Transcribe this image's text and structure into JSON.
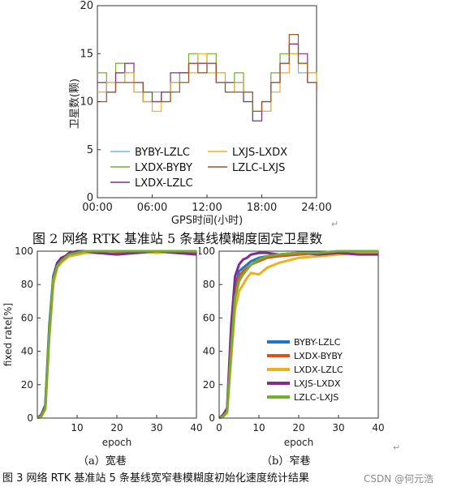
{
  "figure2": {
    "caption": "图 2  网络 RTK 基准站 5 条基线模糊度固定卫星数",
    "return_mark": "↵"
  },
  "figure3": {
    "caption": "图 3  网络 RTK 基准站 5 条基线宽窄巷模糊度初始化速度统计结果",
    "subcaption_a": "（a）宽巷",
    "subcaption_b": "（b）窄巷",
    "return_mark": "↵"
  },
  "watermark": "CSDN @何元浩",
  "colors": {
    "blue": "#1f77c4",
    "orange": "#d95319",
    "yellow": "#edb120",
    "purple": "#7e2f8e",
    "green": "#77ac30",
    "light_blue": "#6fb6e0",
    "brown": "#a0522d"
  },
  "chart_data": [
    {
      "type": "line",
      "ylabel": "卫星数(颗)",
      "xlabel": "GPS时间(小时)",
      "xlim": [
        0,
        24
      ],
      "ylim": [
        0,
        20
      ],
      "xticks": [
        "00:00",
        "06:00",
        "12:00",
        "18:00",
        "24:00"
      ],
      "yticks": [
        "0",
        "5",
        "10",
        "15",
        "20"
      ],
      "grid": false,
      "legend_position": "lower-left",
      "series": [
        {
          "name": "BYBY-LZLC",
          "color": "#6fb6e0",
          "x": [
            0,
            1,
            2,
            3,
            4,
            5,
            6,
            7,
            8,
            9,
            10,
            11,
            12,
            13,
            14,
            15,
            16,
            17,
            18,
            19,
            20,
            21,
            22,
            23,
            24
          ],
          "y": [
            12,
            11,
            13,
            12,
            11,
            10,
            11,
            10,
            12,
            13,
            14,
            13,
            14,
            12,
            11,
            12,
            10,
            8,
            9,
            12,
            14,
            15,
            13,
            12,
            12
          ]
        },
        {
          "name": "LXDX-BYBY",
          "color": "#77ac30",
          "x": [
            0,
            1,
            2,
            3,
            4,
            5,
            6,
            7,
            8,
            9,
            10,
            11,
            12,
            13,
            14,
            15,
            16,
            17,
            18,
            19,
            20,
            21,
            22,
            23,
            24
          ],
          "y": [
            13,
            12,
            14,
            13,
            12,
            11,
            10,
            11,
            12,
            13,
            15,
            14,
            15,
            13,
            12,
            13,
            11,
            9,
            10,
            13,
            15,
            16,
            14,
            13,
            12
          ]
        },
        {
          "name": "LXDX-LZLC",
          "color": "#7e2f8e",
          "x": [
            0,
            1,
            2,
            3,
            4,
            5,
            6,
            7,
            8,
            9,
            10,
            11,
            12,
            13,
            14,
            15,
            16,
            17,
            18,
            19,
            20,
            21,
            22,
            23,
            24
          ],
          "y": [
            12,
            11,
            13,
            14,
            12,
            10,
            10,
            11,
            13,
            13,
            14,
            14,
            14,
            12,
            12,
            12,
            10,
            8,
            10,
            12,
            14,
            16,
            15,
            12,
            11
          ]
        },
        {
          "name": "LXJS-LXDX",
          "color": "#edb120",
          "x": [
            0,
            1,
            2,
            3,
            4,
            5,
            6,
            7,
            8,
            9,
            10,
            11,
            12,
            13,
            14,
            15,
            16,
            17,
            18,
            19,
            20,
            21,
            22,
            23,
            24
          ],
          "y": [
            11,
            12,
            12,
            13,
            11,
            10,
            9,
            10,
            12,
            12,
            13,
            15,
            13,
            13,
            11,
            12,
            11,
            9,
            9,
            11,
            13,
            15,
            14,
            13,
            12
          ]
        },
        {
          "name": "LZLC-LXJS",
          "color": "#a0522d",
          "x": [
            0,
            1,
            2,
            3,
            4,
            5,
            6,
            7,
            8,
            9,
            10,
            11,
            12,
            13,
            14,
            15,
            16,
            17,
            18,
            19,
            20,
            21,
            22,
            23,
            24
          ],
          "y": [
            10,
            11,
            12,
            12,
            12,
            11,
            10,
            10,
            11,
            12,
            14,
            13,
            14,
            12,
            11,
            11,
            11,
            9,
            10,
            12,
            14,
            17,
            14,
            12,
            11
          ]
        }
      ]
    },
    {
      "type": "line",
      "ylabel": "fixed rate[%]",
      "xlabel": "epoch",
      "xlim": [
        0,
        40
      ],
      "ylim": [
        0,
        100
      ],
      "xticks": [
        "10",
        "20",
        "30",
        "40"
      ],
      "yticks": [
        "0",
        "20",
        "40",
        "60",
        "80",
        "100"
      ],
      "grid": false,
      "series": [
        {
          "name": "BYBY-LZLC",
          "color": "#1f77c4",
          "x": [
            0,
            1,
            2,
            3,
            4,
            5,
            6,
            7,
            8,
            10,
            12,
            15,
            20,
            25,
            30,
            35,
            40
          ],
          "y": [
            0,
            2,
            8,
            55,
            85,
            93,
            95,
            96,
            97,
            98,
            99,
            100,
            100,
            99,
            100,
            99,
            99
          ]
        },
        {
          "name": "LXDX-BYBY",
          "color": "#d95319",
          "x": [
            0,
            1,
            2,
            3,
            4,
            5,
            6,
            7,
            8,
            10,
            12,
            15,
            20,
            25,
            30,
            35,
            40
          ],
          "y": [
            0,
            1,
            6,
            50,
            82,
            92,
            94,
            97,
            98,
            99,
            100,
            100,
            99,
            100,
            100,
            99,
            99
          ]
        },
        {
          "name": "LXDX-LZLC",
          "color": "#edb120",
          "x": [
            0,
            1,
            2,
            3,
            4,
            5,
            6,
            7,
            8,
            10,
            12,
            15,
            20,
            25,
            30,
            35,
            40
          ],
          "y": [
            0,
            1,
            5,
            48,
            80,
            90,
            93,
            95,
            97,
            98,
            99,
            99,
            100,
            100,
            99,
            100,
            100
          ]
        },
        {
          "name": "LXJS-LXDX",
          "color": "#7e2f8e",
          "x": [
            0,
            1,
            2,
            3,
            4,
            5,
            6,
            7,
            8,
            10,
            12,
            15,
            20,
            25,
            30,
            35,
            40
          ],
          "y": [
            0,
            2,
            7,
            52,
            84,
            93,
            96,
            97,
            99,
            100,
            100,
            99,
            98,
            99,
            100,
            99,
            98
          ]
        },
        {
          "name": "LZLC-LXJS",
          "color": "#77ac30",
          "x": [
            0,
            1,
            2,
            3,
            4,
            5,
            6,
            7,
            8,
            10,
            12,
            15,
            20,
            25,
            30,
            35,
            40
          ],
          "y": [
            0,
            1,
            6,
            50,
            83,
            91,
            94,
            96,
            98,
            99,
            100,
            100,
            100,
            100,
            100,
            100,
            100
          ]
        }
      ]
    },
    {
      "type": "line",
      "ylabel": "",
      "xlabel": "epoch",
      "xlim": [
        0,
        40
      ],
      "ylim": [
        0,
        100
      ],
      "xticks": [
        "0",
        "10",
        "20",
        "30",
        "40"
      ],
      "yticks": [
        "0",
        "20",
        "40",
        "60",
        "80",
        "100"
      ],
      "grid": false,
      "legend_position": "lower-right",
      "series": [
        {
          "name": "BYBY-LZLC",
          "color": "#1f77c4",
          "x": [
            0,
            1,
            2,
            3,
            4,
            5,
            6,
            7,
            8,
            10,
            12,
            15,
            20,
            25,
            30,
            35,
            40
          ],
          "y": [
            0,
            1,
            5,
            45,
            78,
            88,
            90,
            92,
            94,
            96,
            97,
            98,
            99,
            99,
            100,
            100,
            100
          ]
        },
        {
          "name": "LXDX-BYBY",
          "color": "#d95319",
          "x": [
            0,
            1,
            2,
            3,
            4,
            5,
            6,
            7,
            8,
            10,
            12,
            15,
            20,
            25,
            30,
            35,
            40
          ],
          "y": [
            0,
            1,
            4,
            42,
            75,
            85,
            88,
            90,
            92,
            94,
            96,
            97,
            98,
            99,
            99,
            99,
            99
          ]
        },
        {
          "name": "LXDX-LZLC",
          "color": "#edb120",
          "x": [
            0,
            1,
            2,
            3,
            4,
            5,
            6,
            7,
            8,
            10,
            12,
            15,
            20,
            25,
            30,
            35,
            40
          ],
          "y": [
            0,
            1,
            3,
            35,
            65,
            76,
            80,
            84,
            87,
            86,
            90,
            93,
            96,
            97,
            98,
            99,
            99
          ]
        },
        {
          "name": "LXJS-LXDX",
          "color": "#7e2f8e",
          "x": [
            0,
            1,
            2,
            3,
            4,
            5,
            6,
            7,
            8,
            10,
            12,
            15,
            20,
            25,
            30,
            35,
            40
          ],
          "y": [
            0,
            2,
            6,
            55,
            85,
            92,
            95,
            96,
            98,
            99,
            99,
            98,
            99,
            98,
            99,
            98,
            98
          ]
        },
        {
          "name": "LZLC-LXJS",
          "color": "#77ac30",
          "x": [
            0,
            1,
            2,
            3,
            4,
            5,
            6,
            7,
            8,
            10,
            12,
            15,
            20,
            25,
            30,
            35,
            40
          ],
          "y": [
            0,
            1,
            4,
            40,
            72,
            82,
            86,
            89,
            92,
            95,
            97,
            98,
            99,
            99,
            100,
            100,
            100
          ]
        }
      ]
    }
  ]
}
